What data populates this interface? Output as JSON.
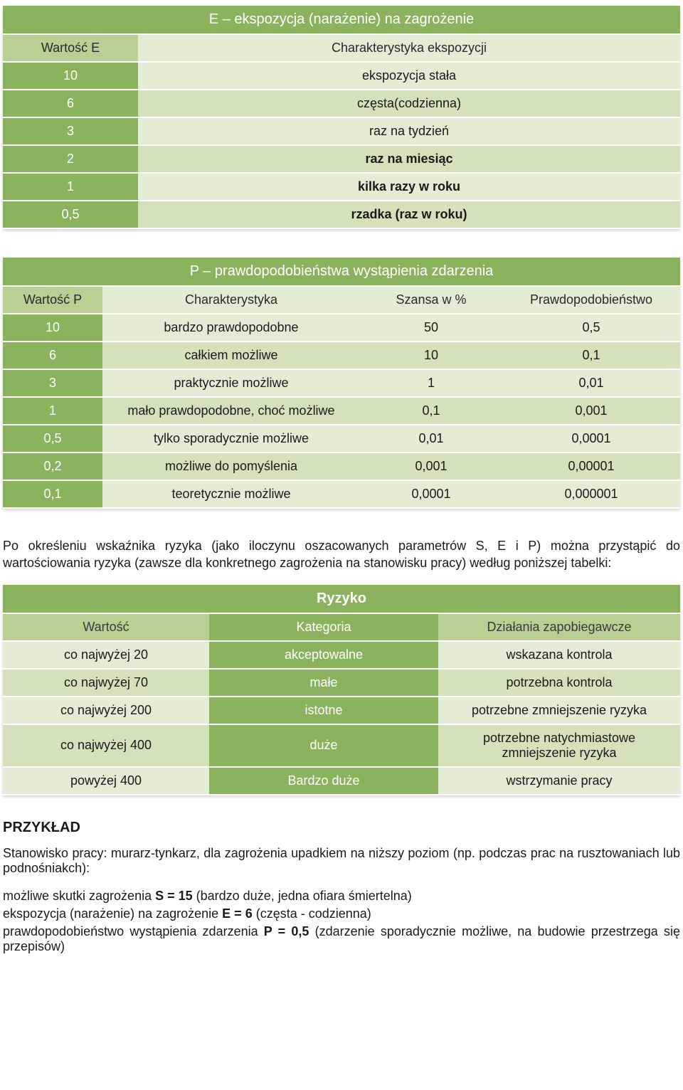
{
  "tableE": {
    "title": "E – ekspozycja (narażenie) na zagrożenie",
    "headers": [
      "Wartość E",
      "Charakterystyka ekspozycji"
    ],
    "rows": [
      [
        "10",
        "ekspozycja stała",
        false
      ],
      [
        "6",
        "częsta(codzienna)",
        false
      ],
      [
        "3",
        "raz na tydzień",
        false
      ],
      [
        "2",
        "raz na miesiąc",
        true
      ],
      [
        "1",
        "kilka razy w roku",
        true
      ],
      [
        "0,5",
        "rzadka (raz w roku)",
        true
      ]
    ]
  },
  "tableP": {
    "title": "P – prawdopodobieństwa wystąpienia zdarzenia",
    "headers": [
      "Wartość P",
      "Charakterystyka",
      "Szansa w %",
      "Prawdopodobieństwo"
    ],
    "rows": [
      [
        "10",
        "bardzo prawdopodobne",
        "50",
        "0,5"
      ],
      [
        "6",
        "całkiem możliwe",
        "10",
        "0,1"
      ],
      [
        "3",
        "praktycznie możliwe",
        "1",
        "0,01"
      ],
      [
        "1",
        "mało prawdopodobne, choć możliwe",
        "0,1",
        "0,001"
      ],
      [
        "0,5",
        "tylko sporadycznie możliwe",
        "0,01",
        "0,0001"
      ],
      [
        "0,2",
        "możliwe do pomyślenia",
        "0,001",
        "0,00001"
      ],
      [
        "0,1",
        "teoretycznie możliwe",
        "0,0001",
        "0,000001"
      ]
    ]
  },
  "para1": "Po określeniu wskaźnika ryzyka (jako iloczynu oszacowanych parametrów S, E i P) można przystąpić do wartościowania ryzyka (zawsze dla konkretnego zagrożenia na stanowisku pracy) według poniższej tabelki:",
  "tableR": {
    "title": "Ryzyko",
    "headers": [
      "Wartość",
      "Kategoria",
      "Działania zapobiegawcze"
    ],
    "rows": [
      [
        "co najwyżej 20",
        "akceptowalne",
        "wskazana kontrola"
      ],
      [
        "co najwyżej 70",
        "małe",
        "potrzebna kontrola"
      ],
      [
        "co najwyżej 200",
        "istotne",
        "potrzebne zmniejszenie ryzyka"
      ],
      [
        "co najwyżej 400",
        "duże",
        "potrzebne natychmiastowe zmniejszenie ryzyka"
      ],
      [
        "powyżej 400",
        "Bardzo duże",
        "wstrzymanie pracy"
      ]
    ]
  },
  "example": {
    "heading": "PRZYKŁAD",
    "intro": "Stanowisko pracy: murarz-tynkarz, dla zagrożenia upadkiem na niższy poziom (np. podczas prac na rusztowaniach lub podnośniakch):",
    "lines": [
      {
        "pre": "możliwe skutki zagrożenia ",
        "bold": "S = 15",
        "post": " (bardzo duże, jedna ofiara śmiertelna)"
      },
      {
        "pre": "ekspozycja (narażenie) na zagrożenie ",
        "bold": "E = 6",
        "post": " (częsta - codzienna)"
      },
      {
        "pre": " prawdopodobieństwo wystąpienia zdarzenia ",
        "bold": "P = 0,5",
        "post": " (zdarzenie sporadycznie możliwe, na budowie przestrzega się przepisów)",
        "hang": true
      }
    ]
  },
  "colors": {
    "title_bg": "#8bb35d",
    "title_fg": "#ffffff",
    "light_bg": "#e3ecd4",
    "dark_bg": "#d4e2bc",
    "headleft_bg": "#b9d094"
  }
}
